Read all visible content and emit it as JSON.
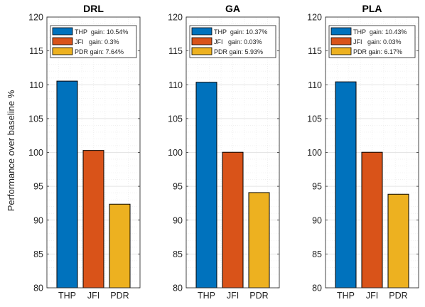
{
  "figure": {
    "ylabel": "Performance over baseline %"
  },
  "chart_data": [
    {
      "type": "bar",
      "title": "DRL",
      "categories": [
        "THP",
        "JFI",
        "PDR"
      ],
      "values": [
        110.54,
        100.3,
        92.36
      ],
      "ylim": [
        80,
        120
      ],
      "yticks": [
        80,
        85,
        90,
        95,
        100,
        105,
        110,
        115,
        120
      ],
      "grid": true,
      "legend_position": "top",
      "legend": [
        "THP  gain: 10.54%",
        "JFI   gain: 0.3%",
        "PDR gain: 7.64%"
      ],
      "colors": [
        "#0072BD",
        "#D95319",
        "#EDB120"
      ]
    },
    {
      "type": "bar",
      "title": "GA",
      "categories": [
        "THP",
        "JFI",
        "PDR"
      ],
      "values": [
        110.37,
        100.03,
        94.07
      ],
      "ylim": [
        80,
        120
      ],
      "yticks": [
        80,
        85,
        90,
        95,
        100,
        105,
        110,
        115,
        120
      ],
      "grid": true,
      "legend_position": "top",
      "legend": [
        "THP  gain: 10.37%",
        "JFI   gain: 0.03%",
        "PDR gain: 5.93%"
      ],
      "colors": [
        "#0072BD",
        "#D95319",
        "#EDB120"
      ]
    },
    {
      "type": "bar",
      "title": "PLA",
      "categories": [
        "THP",
        "JFI",
        "PDR"
      ],
      "values": [
        110.43,
        100.03,
        93.83
      ],
      "ylim": [
        80,
        120
      ],
      "yticks": [
        80,
        85,
        90,
        95,
        100,
        105,
        110,
        115,
        120
      ],
      "grid": true,
      "legend_position": "top",
      "legend": [
        "THP  gain: 10.43%",
        "JFI   gain: 0.03%",
        "PDR gain: 6.17%"
      ],
      "colors": [
        "#0072BD",
        "#D95319",
        "#EDB120"
      ]
    }
  ]
}
